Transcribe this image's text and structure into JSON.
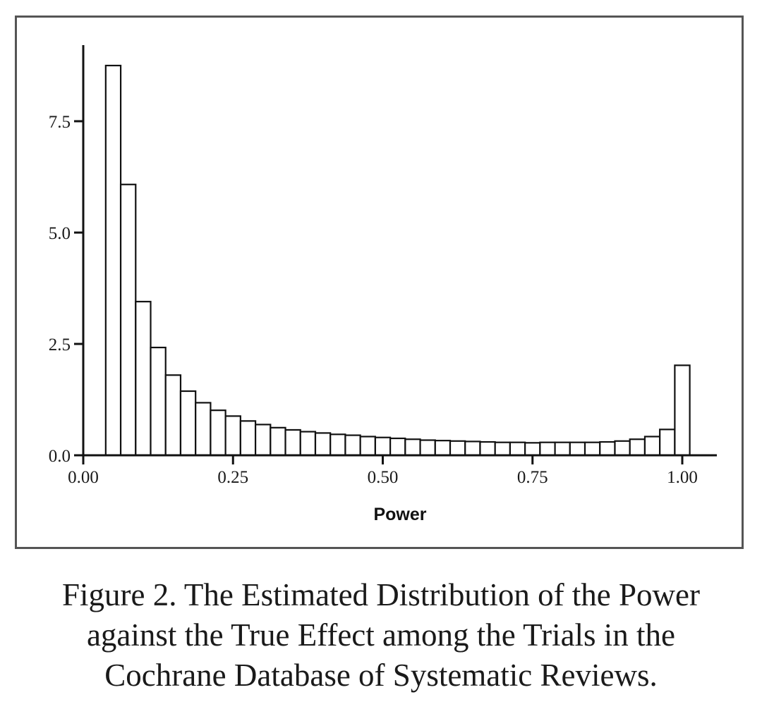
{
  "chart_data": {
    "type": "bar",
    "title": "",
    "xlabel": "Power",
    "ylabel": "",
    "xlim": [
      0.0,
      1.05
    ],
    "ylim": [
      0.0,
      9.2
    ],
    "grid": false,
    "bin_width": 0.025,
    "x_ticks": [
      0.0,
      0.25,
      0.5,
      0.75,
      1.0
    ],
    "x_tick_labels": [
      "0.00",
      "0.25",
      "0.50",
      "0.75",
      "1.00"
    ],
    "y_ticks": [
      0.0,
      2.5,
      5.0,
      7.5
    ],
    "y_tick_labels": [
      "0.0",
      "2.5",
      "5.0",
      "7.5"
    ],
    "bins_start": [
      0.0375,
      0.0625,
      0.0875,
      0.1125,
      0.1375,
      0.1625,
      0.1875,
      0.2125,
      0.2375,
      0.2625,
      0.2875,
      0.3125,
      0.3375,
      0.3625,
      0.3875,
      0.4125,
      0.4375,
      0.4625,
      0.4875,
      0.5125,
      0.5375,
      0.5625,
      0.5875,
      0.6125,
      0.6375,
      0.6625,
      0.6875,
      0.7125,
      0.7375,
      0.7625,
      0.7875,
      0.8125,
      0.8375,
      0.8625,
      0.8875,
      0.9125,
      0.9375,
      0.9625,
      0.9875
    ],
    "values": [
      8.75,
      6.08,
      3.45,
      2.42,
      1.8,
      1.44,
      1.18,
      1.01,
      0.88,
      0.77,
      0.69,
      0.62,
      0.57,
      0.53,
      0.5,
      0.47,
      0.45,
      0.42,
      0.4,
      0.38,
      0.36,
      0.34,
      0.33,
      0.32,
      0.31,
      0.3,
      0.29,
      0.29,
      0.28,
      0.29,
      0.29,
      0.29,
      0.29,
      0.3,
      0.32,
      0.36,
      0.42,
      0.58,
      2.02
    ]
  },
  "caption": {
    "line1": "Figure 2. The Estimated Distribution of the Power",
    "line2": "against the True Effect among the Trials in the",
    "line3": "Cochrane Database of Systematic Reviews."
  },
  "colors": {
    "bar_fill": "#ffffff",
    "bar_stroke": "#111111",
    "axis": "#111111",
    "frame": "#555555"
  }
}
